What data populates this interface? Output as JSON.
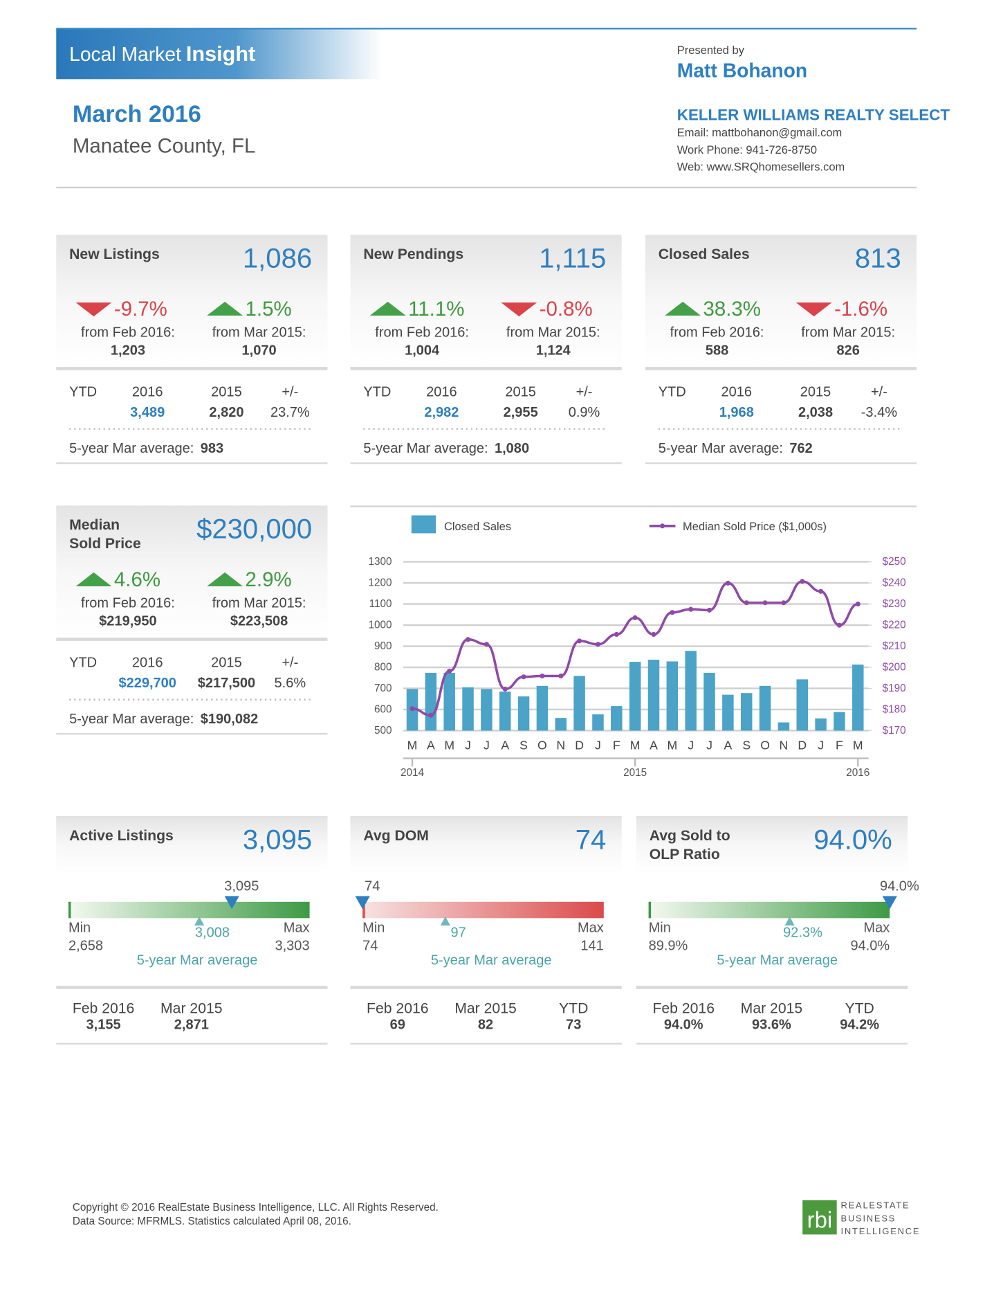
{
  "header": {
    "title_plain": "Local Market",
    "title_bold": "Insight",
    "presented_by": "Presented by",
    "agent": "Matt Bohanon",
    "month": "March 2016",
    "area": "Manatee County, FL",
    "company": "KELLER WILLIAMS REALTY SELECT",
    "email": "Email: mattbohanon@gmail.com",
    "phone": "Work Phone: 941-726-8750",
    "web": "Web: www.SRQhomesellers.com"
  },
  "panels": [
    {
      "title": [
        "New Listings"
      ],
      "value": "1,086",
      "changes": [
        {
          "pct": "-9.7%",
          "dir": "down",
          "from": "from Feb 2016:",
          "base": "1,203"
        },
        {
          "pct": "1.5%",
          "dir": "up",
          "from": "from Mar 2015:",
          "base": "1,070"
        }
      ],
      "ytd": {
        "label": "YTD",
        "col1": "2016",
        "col2": "2015",
        "col3": "+/-",
        "v1": "3,489",
        "v2": "2,820",
        "v3": "23.7%"
      },
      "avg_label": "5-year Mar average:",
      "avg": "983"
    },
    {
      "title": [
        "New Pendings"
      ],
      "value": "1,115",
      "changes": [
        {
          "pct": "11.1%",
          "dir": "up",
          "from": "from Feb 2016:",
          "base": "1,004"
        },
        {
          "pct": "-0.8%",
          "dir": "down",
          "from": "from Mar 2015:",
          "base": "1,124"
        }
      ],
      "ytd": {
        "label": "YTD",
        "col1": "2016",
        "col2": "2015",
        "col3": "+/-",
        "v1": "2,982",
        "v2": "2,955",
        "v3": "0.9%"
      },
      "avg_label": "5-year Mar average:",
      "avg": "1,080"
    },
    {
      "title": [
        "Closed Sales"
      ],
      "value": "813",
      "changes": [
        {
          "pct": "38.3%",
          "dir": "up",
          "from": "from Feb 2016:",
          "base": "588"
        },
        {
          "pct": "-1.6%",
          "dir": "down",
          "from": "from Mar 2015:",
          "base": "826"
        }
      ],
      "ytd": {
        "label": "YTD",
        "col1": "2016",
        "col2": "2015",
        "col3": "+/-",
        "v1": "1,968",
        "v2": "2,038",
        "v3": "-3.4%"
      },
      "avg_label": "5-year Mar average:",
      "avg": "762"
    },
    {
      "title": [
        "Median",
        "Sold Price"
      ],
      "value": "$230,000",
      "changes": [
        {
          "pct": "4.6%",
          "dir": "up",
          "from": "from Feb 2016:",
          "base": "$219,950"
        },
        {
          "pct": "2.9%",
          "dir": "up",
          "from": "from Mar 2015:",
          "base": "$223,508"
        }
      ],
      "ytd": {
        "label": "YTD",
        "col1": "2016",
        "col2": "2015",
        "col3": "+/-",
        "v1": "$229,700",
        "v2": "$217,500",
        "v3": "5.6%"
      },
      "avg_label": "5-year Mar average:",
      "avg": "$190,082"
    }
  ],
  "chart_data": {
    "type": "bar-line",
    "categories": [
      "M",
      "A",
      "M",
      "J",
      "J",
      "A",
      "S",
      "O",
      "N",
      "D",
      "J",
      "F",
      "M",
      "A",
      "M",
      "J",
      "J",
      "A",
      "S",
      "O",
      "N",
      "D",
      "J",
      "F",
      "M"
    ],
    "year_labels": [
      {
        "value": 0,
        "label": "2014"
      },
      {
        "value": 12,
        "label": "2015"
      },
      {
        "value": 24,
        "label": "2016"
      }
    ],
    "series": [
      {
        "name": "Closed Sales",
        "type": "bar",
        "color": "#4ba3c8",
        "values": [
          697,
          774,
          774,
          705,
          697,
          685,
          662,
          712,
          560,
          759,
          577,
          616,
          826,
          836,
          828,
          878,
          774,
          670,
          678,
          712,
          539,
          743,
          558,
          588,
          813
        ]
      },
      {
        "name": "Median Sold Price ($1,000s)",
        "type": "line",
        "axis": "y2",
        "color": "#8e4aa6",
        "values": [
          180.4,
          177.3,
          198.2,
          213.2,
          210.9,
          189.7,
          195.5,
          195.9,
          195.9,
          212.5,
          210.9,
          215.6,
          223.5,
          215.6,
          226.0,
          227.5,
          227.1,
          239.9,
          230.6,
          230.6,
          230.6,
          240.7,
          236.0,
          219.95,
          230
        ]
      }
    ],
    "ylim": [
      500,
      1300
    ],
    "yticks": [
      500,
      600,
      700,
      800,
      900,
      1000,
      1100,
      1200,
      1300
    ],
    "y2lim": [
      170,
      250
    ],
    "y2ticks": [
      {
        "value": 170,
        "label": "$170"
      },
      {
        "value": 180,
        "label": "$180"
      },
      {
        "value": 190,
        "label": "$190"
      },
      {
        "value": 200,
        "label": "$200"
      },
      {
        "value": 210,
        "label": "$210"
      },
      {
        "value": 220,
        "label": "$220"
      },
      {
        "value": 230,
        "label": "$230"
      },
      {
        "value": 240,
        "label": "$240"
      },
      {
        "value": 250,
        "label": "$250"
      }
    ],
    "grid": true
  },
  "gauges": [
    {
      "title": [
        "Active Listings"
      ],
      "value": "3,095",
      "current": {
        "value": 3095,
        "label": "3,095"
      },
      "min_label": "Min",
      "min": {
        "value": 2658,
        "label": "2,658"
      },
      "max_label": "Max",
      "max": {
        "value": 3303,
        "label": "3,303"
      },
      "average": {
        "value": 3008,
        "label": "3,008"
      },
      "average_label": "5-year Mar average",
      "gradient": [
        "#f4f9f1",
        "#3d9a44"
      ],
      "stats": [
        {
          "label": "Feb 2016",
          "value": "3,155"
        },
        {
          "label": "Mar 2015",
          "value": "2,871"
        }
      ]
    },
    {
      "title": [
        "Avg DOM"
      ],
      "value": "74",
      "current": 74,
      "min_label": "Min",
      "min": 74,
      "max_label": "Max",
      "max": 141,
      "average": 97,
      "average_label": "5-year Mar average",
      "gradient": [
        "#f7e2e2",
        "#dc4a4a"
      ],
      "stats": [
        {
          "label": "Feb 2016",
          "value": "69"
        },
        {
          "label": "Mar 2015",
          "value": "82"
        },
        {
          "label": "YTD",
          "value": "73"
        }
      ]
    },
    {
      "title": [
        "Avg Sold to",
        "OLP Ratio"
      ],
      "value": "94.0%",
      "current": {
        "value": 94.0,
        "label": "94.0%"
      },
      "min_label": "Min",
      "min": {
        "value": 89.9,
        "label": "89.9%"
      },
      "max_label": "Max",
      "max": {
        "value": 94.0,
        "label": "94.0%"
      },
      "average": {
        "value": 92.3,
        "label": "92.3%"
      },
      "average_label": "5-year Mar average",
      "gradient": [
        "#f4f9f1",
        "#3d9a44"
      ],
      "stats": [
        {
          "label": "Feb 2016",
          "value": "94.0%"
        },
        {
          "label": "Mar 2015",
          "value": "93.6%"
        },
        {
          "label": "YTD",
          "value": "94.2%"
        }
      ]
    }
  ],
  "footer": {
    "copyright": "Copyright © 2016 RealEstate Business Intelligence, LLC. All Rights Reserved.",
    "source": "Data Source: MFRMLS. Statistics calculated April 08, 2016.",
    "logo": "rbi",
    "logo_lines": [
      "REALESTATE",
      "BUSINESS",
      "INTELLIGENCE"
    ]
  }
}
